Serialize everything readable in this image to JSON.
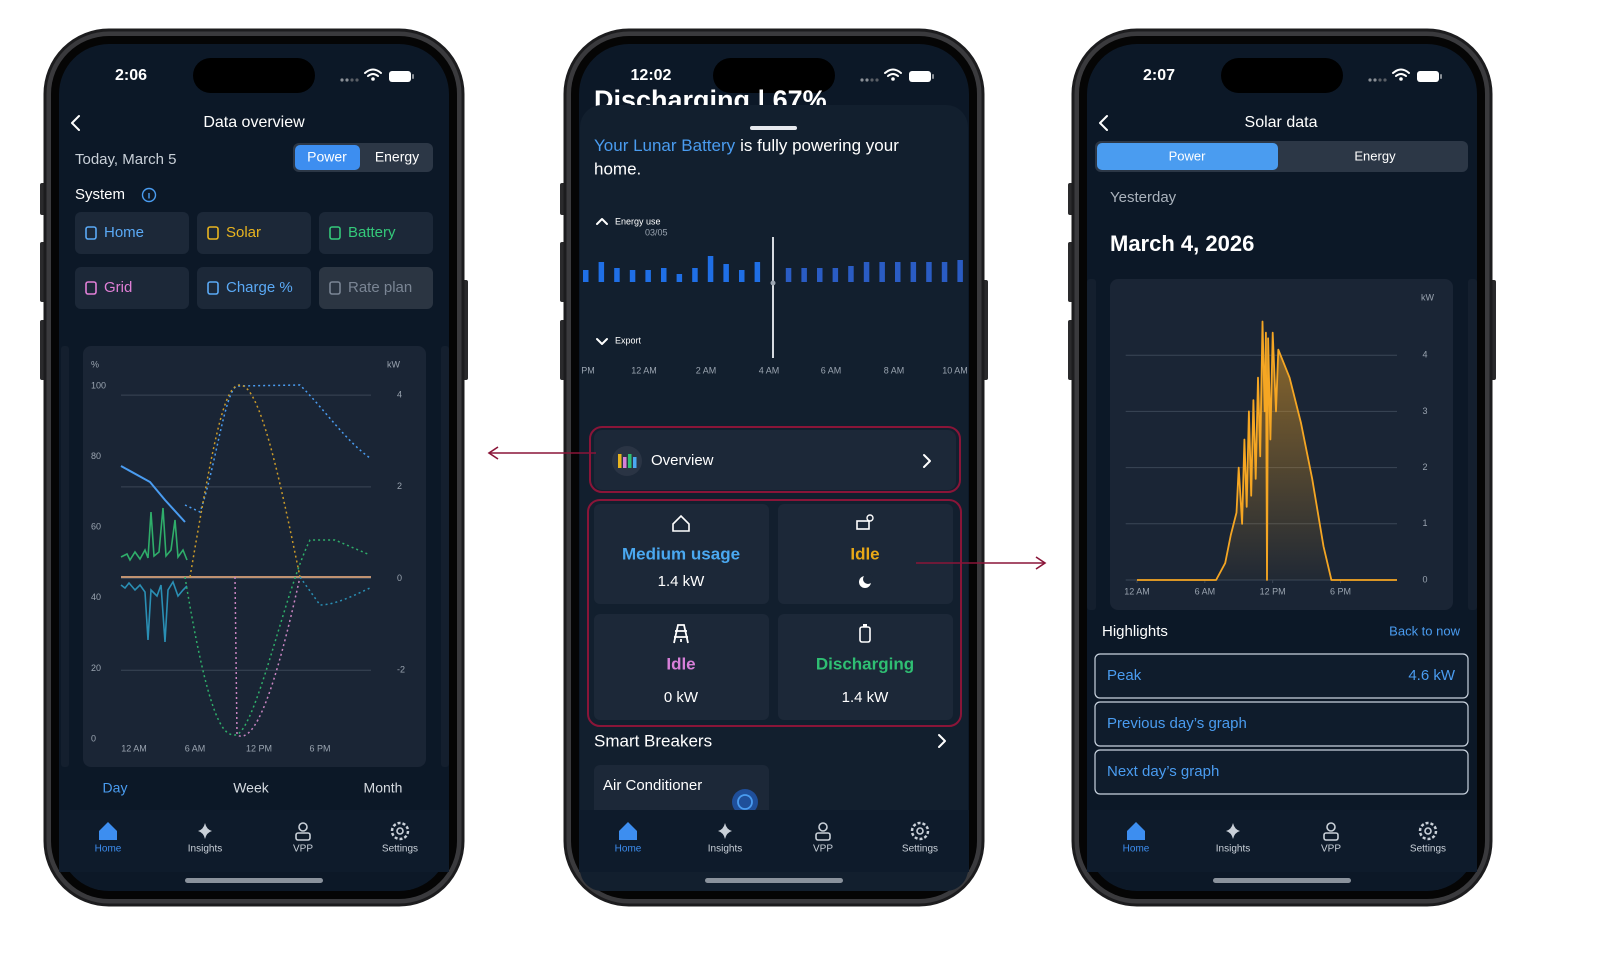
{
  "left_phone": {
    "status_time": "2:06",
    "title": "Data overview",
    "date": "Today, March 5",
    "toggle": [
      "Power",
      "Energy"
    ],
    "section": "System",
    "filters": [
      {
        "label": "Home",
        "color": "#5aa9f5"
      },
      {
        "label": "Solar",
        "color": "#e8b420"
      },
      {
        "label": "Battery",
        "color": "#34c97a"
      },
      {
        "label": "Grid",
        "color": "#e07fd6"
      },
      {
        "label": "Charge %",
        "color": "#5aa9f5"
      },
      {
        "label": "Rate plan",
        "color": "#7a8594"
      }
    ],
    "chart": {
      "left_unit": "%",
      "ylim": [
        0,
        100
      ],
      "left_ticks": [
        100,
        80,
        60,
        40,
        20,
        0
      ],
      "right_unit": "kW",
      "y2lim": [
        -3.5,
        4.2
      ],
      "right_ticks": [
        4,
        2,
        0,
        -2
      ],
      "x_labels": [
        "12 AM",
        "6 AM",
        "12 PM",
        "6 PM"
      ]
    },
    "ranges": [
      "Day",
      "Week",
      "Month"
    ]
  },
  "middle_phone": {
    "status_time": "12:02",
    "behind_title": "Discharging | 67%",
    "message_highlight": "Your Lunar Battery",
    "message_rest": "is fully powering your",
    "message_end": "home.",
    "energy_label": "Energy use",
    "energy_date": "03/05",
    "export_label": "Export",
    "chart": {
      "type": "bar",
      "values": [
        12,
        20,
        14,
        12,
        12,
        14,
        8,
        14,
        26,
        18,
        12,
        20,
        null,
        14,
        14,
        14,
        14,
        16,
        20,
        20,
        20,
        20,
        20,
        20,
        22
      ],
      "ylim": [
        0,
        60
      ],
      "x_labels": [
        "PM",
        "12 AM",
        "2 AM",
        "4 AM",
        "6 AM",
        "8 AM",
        "10 AM"
      ]
    },
    "overview": "Overview",
    "cards": [
      {
        "title": "Medium usage",
        "value": "1.4 kW",
        "color": "#4aa8f0"
      },
      {
        "title": "Idle",
        "color": "#e8a817"
      },
      {
        "title": "Idle",
        "value": "0 kW",
        "color": "#d77fd8"
      },
      {
        "title": "Discharging",
        "value": "1.4 kW",
        "color": "#2fbf73"
      }
    ],
    "section": "Smart Breakers",
    "breaker": "Air Conditioner"
  },
  "right_phone": {
    "status_time": "2:07",
    "title": "Solar data",
    "toggle": [
      "Power",
      "Energy"
    ],
    "period": "Yesterday",
    "date": "March 4, 2026",
    "chart": {
      "type": "line",
      "unit": "kW",
      "x": [
        0,
        7,
        7.8,
        8.3,
        8.8,
        9.0,
        9.3,
        9.5,
        9.7,
        9.9,
        10.1,
        10.3,
        10.5,
        10.7,
        10.9,
        11.1,
        11.3,
        11.4,
        11.5,
        11.6,
        11.8,
        12.0,
        12.3,
        12.5,
        13.5,
        14.5,
        15.5,
        16.5,
        17.2,
        23
      ],
      "values": [
        0,
        0,
        0.3,
        0.8,
        1.2,
        2.0,
        1.0,
        2.5,
        1.3,
        3.0,
        1.5,
        3.2,
        1.8,
        3.6,
        2.2,
        4.6,
        3.0,
        4.4,
        0,
        4.3,
        2.5,
        4.4,
        3.0,
        4.1,
        3.6,
        2.8,
        1.8,
        0.6,
        0,
        0
      ],
      "xlim": [
        -1,
        23
      ],
      "ylim": [
        0,
        5
      ],
      "yticks": [
        0,
        1,
        2,
        3,
        4
      ],
      "xticks": [
        {
          "value": 0,
          "label": "12 AM"
        },
        {
          "value": 6,
          "label": "6 AM"
        },
        {
          "value": 12,
          "label": "12 PM"
        },
        {
          "value": 18,
          "label": "6 PM"
        }
      ],
      "color": "#f5a623"
    },
    "highlights": "Highlights",
    "back": "Back to now",
    "rows": [
      {
        "label": "Peak",
        "value": "4.6 kW"
      },
      {
        "label": "Previous day’s graph"
      },
      {
        "label": "Next day’s graph"
      }
    ]
  },
  "tab_bar": [
    "Home",
    "Insights",
    "VPP",
    "Settings"
  ]
}
